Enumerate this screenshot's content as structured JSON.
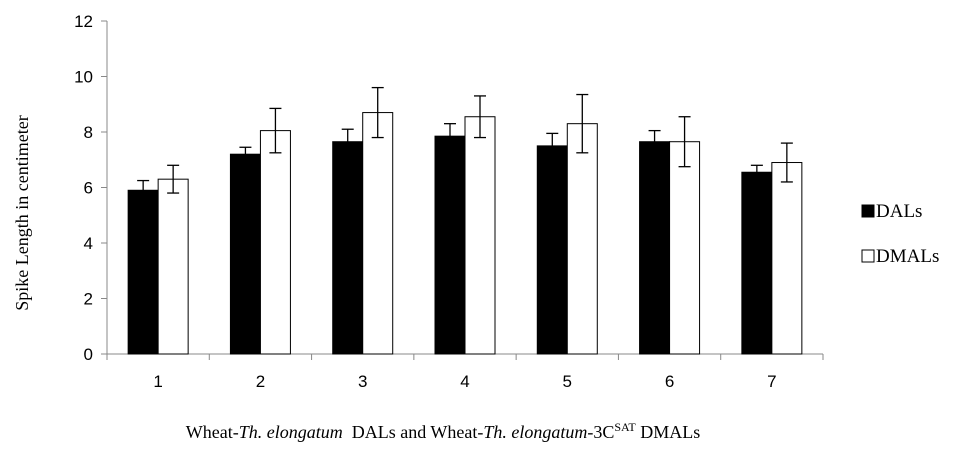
{
  "chart_data": {
    "type": "bar",
    "categories": [
      "1",
      "2",
      "3",
      "4",
      "5",
      "6",
      "7"
    ],
    "series": [
      {
        "name": "DALs",
        "color": "#000000",
        "values": [
          5.9,
          7.2,
          7.65,
          7.85,
          7.5,
          7.65,
          6.55
        ],
        "error": [
          0.35,
          0.25,
          0.45,
          0.45,
          0.45,
          0.4,
          0.25
        ]
      },
      {
        "name": "DMALs",
        "color": "#ffffff",
        "values": [
          6.3,
          8.05,
          8.7,
          8.55,
          8.3,
          7.65,
          6.9
        ],
        "error": [
          0.5,
          0.8,
          0.9,
          0.75,
          1.05,
          0.9,
          0.7
        ]
      }
    ],
    "ylabel": "Spike Length in centimeter",
    "xlabel": {
      "t1": "Wheat-",
      "t2": "Th. elongatum",
      "t3": "  DALs and Wheat-",
      "t4": "Th. elongatum",
      "t5": "-3C",
      "t6": "SAT",
      "t7": " DMALs"
    },
    "ylim": [
      0,
      12
    ],
    "yticks": [
      0,
      2,
      4,
      6,
      8,
      10,
      12
    ],
    "legend_position": "right",
    "grid": false
  }
}
